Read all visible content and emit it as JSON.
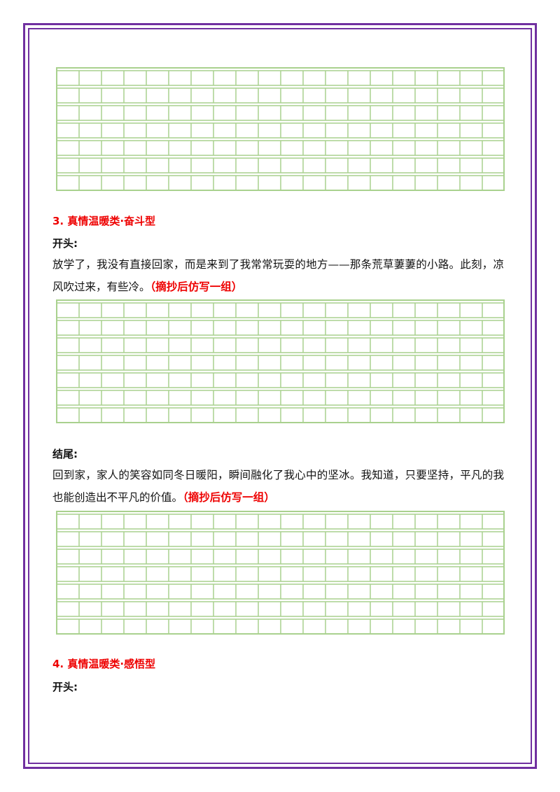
{
  "sections": [
    {
      "heading": "3.  真情温暖类·奋斗型",
      "parts": [
        {
          "label": "开头:",
          "text": "放学了，我没有直接回家，而是来到了我常常玩耍的地方——那条荒草萋萋的小路。此刻，凉风吹过来，有些冷。",
          "note": "（摘抄后仿写一组）"
        },
        {
          "label": "结尾:",
          "text": "回到家，家人的笑容如同冬日暖阳，瞬间融化了我心中的坚冰。我知道，只要坚持，平凡的我也能创造出不平凡的价值。",
          "note": "（摘抄后仿写一组）"
        }
      ]
    },
    {
      "heading": "4.  真情温暖类·感悟型",
      "parts": [
        {
          "label": "开头:"
        }
      ]
    }
  ]
}
